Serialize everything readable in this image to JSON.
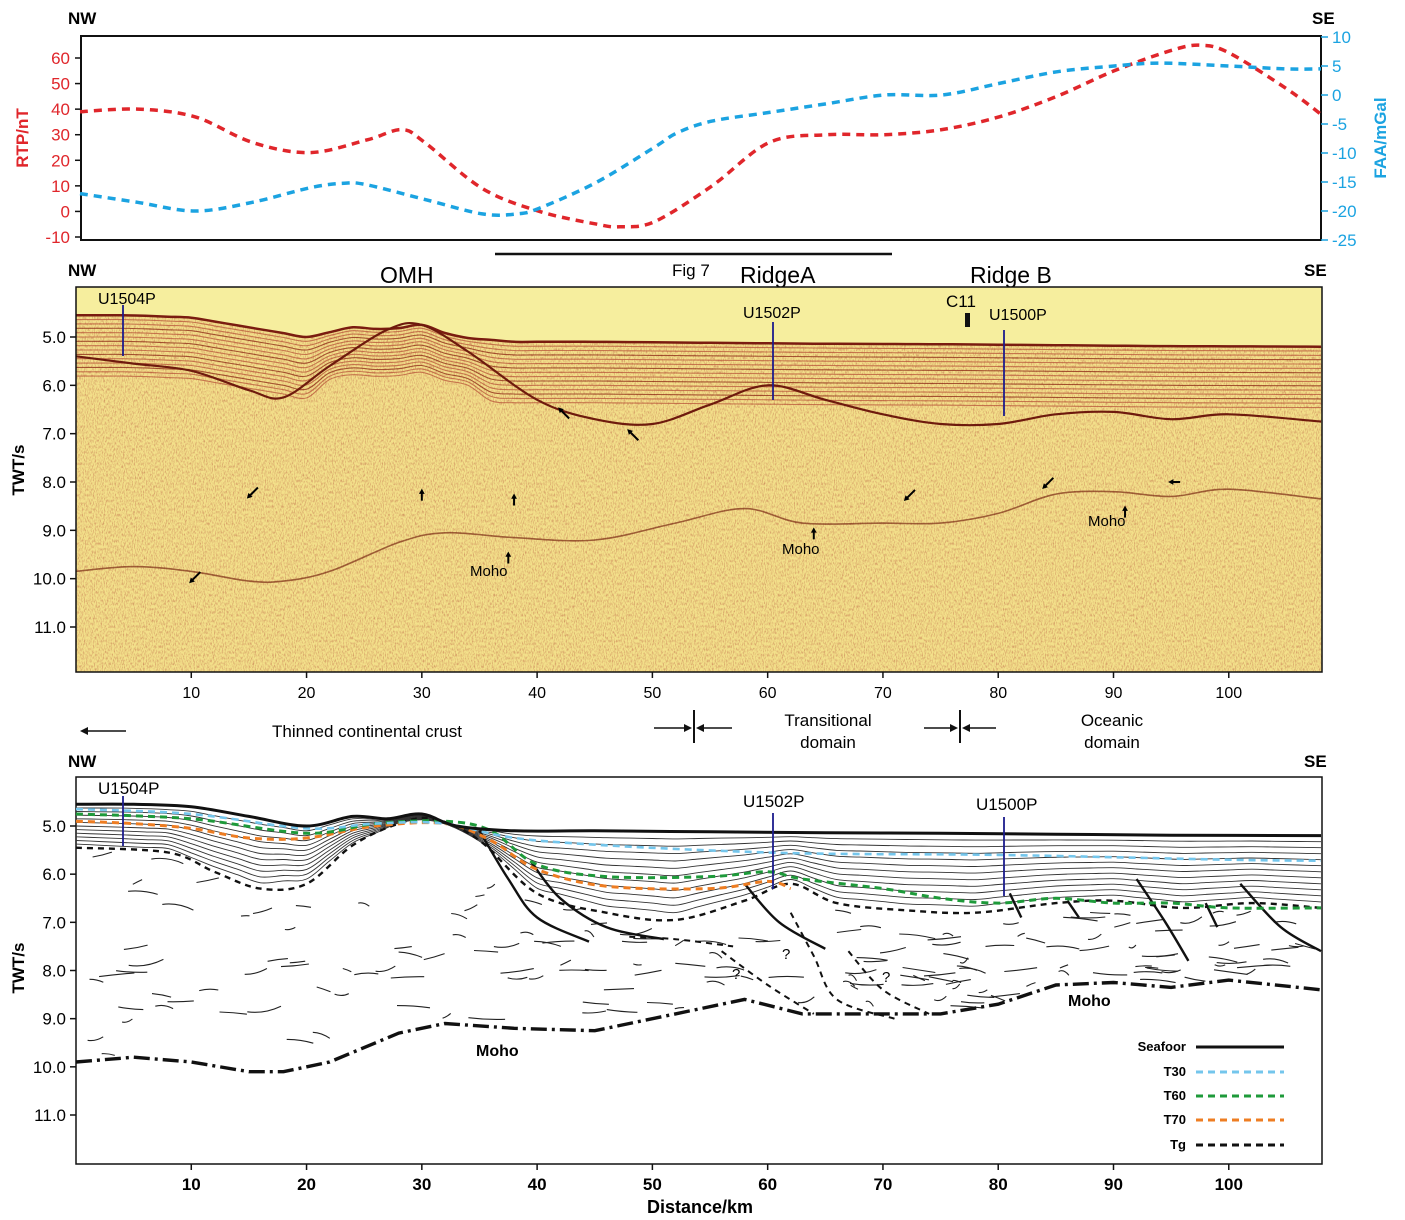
{
  "colors": {
    "rtp": "#e0262b",
    "faa": "#1ba3e1",
    "t30": "#74c6ec",
    "t60": "#1e9a3a",
    "t70": "#ee7d22",
    "ink": "#111111",
    "seismic_bg": "#f3e08a",
    "site_line": "#1c1c8c"
  },
  "panel_a": {
    "left_label": "NW",
    "right_label": "SE",
    "left_axis_label": "RTP/nT",
    "right_axis_label": "FAA/mGal",
    "fig_ref_label": "Fig 7"
  },
  "panel_b": {
    "left_label": "NW",
    "right_label": "SE",
    "y_axis_label": "TWT/s",
    "features": [
      "OMH",
      "RidgeA",
      "Ridge B"
    ],
    "marker_label": "C11",
    "sites": [
      "U1504P",
      "U1502P",
      "U1500P"
    ],
    "moho_labels": [
      "Moho",
      "Moho",
      "Moho"
    ],
    "domain_labels": {
      "continental": "Thinned continental crust",
      "transitional_1": "Transitional",
      "transitional_2": "domain",
      "oceanic_1": "Oceanic",
      "oceanic_2": "domain"
    }
  },
  "panel_c": {
    "left_label": "NW",
    "right_label": "SE",
    "y_axis_label": "TWT/s",
    "x_axis_label": "Distance/km",
    "sites": [
      "U1504P",
      "U1502P",
      "U1500P"
    ],
    "moho_labels": [
      "Moho",
      "Moho"
    ],
    "question_marks": [
      "?",
      "?",
      "?"
    ],
    "legend": [
      {
        "label": "Seafoor",
        "color": "#111111",
        "style": "solid"
      },
      {
        "label": "T30",
        "color": "#74c6ec",
        "style": "dashed"
      },
      {
        "label": "T60",
        "color": "#1e9a3a",
        "style": "dashed"
      },
      {
        "label": "T70",
        "color": "#ee7d22",
        "style": "dashed"
      },
      {
        "label": "Tg",
        "color": "#111111",
        "style": "dashed"
      }
    ]
  },
  "chart_data": [
    {
      "type": "line",
      "xlabel": "Distance/km",
      "xlim": [
        0,
        108
      ],
      "y_left": {
        "label": "RTP/nT",
        "ticks": [
          "-10",
          "0",
          "10",
          "20",
          "30",
          "40",
          "50",
          "60"
        ],
        "lim": [
          -12,
          70
        ]
      },
      "y_right": {
        "label": "FAA/mGal",
        "ticks": [
          "-25",
          "-20",
          "-15",
          "-10",
          "-5",
          "0",
          "5",
          "10"
        ],
        "lim": [
          -25,
          10
        ]
      },
      "series": [
        {
          "axis": "left",
          "color": "#e0262b",
          "x": [
            0,
            5,
            10,
            15,
            20,
            25,
            28,
            30,
            35,
            40,
            45,
            47,
            50,
            55,
            60,
            65,
            70,
            75,
            80,
            85,
            90,
            95,
            97.5,
            100,
            105,
            108
          ],
          "y": [
            39,
            40,
            37,
            27,
            23,
            28,
            32,
            27,
            9,
            0,
            -5,
            -6,
            -4,
            10,
            27,
            30,
            30,
            32,
            37,
            45,
            55,
            63,
            65,
            62,
            48,
            38
          ]
        },
        {
          "axis": "right",
          "color": "#1ba3e1",
          "x": [
            0,
            5,
            10,
            15,
            20,
            23,
            25,
            30,
            35,
            38,
            40,
            45,
            50,
            52,
            55,
            60,
            65,
            70,
            75,
            80,
            85,
            90,
            94,
            100,
            105,
            108
          ],
          "y": [
            -17,
            -18.5,
            -20,
            -18.5,
            -16,
            -15.2,
            -15.5,
            -18,
            -20.5,
            -20.5,
            -19.5,
            -15,
            -9,
            -6.5,
            -4.5,
            -3,
            -1.5,
            0,
            0,
            2,
            4,
            5,
            5.5,
            5,
            4.5,
            4.5
          ]
        }
      ]
    },
    {
      "type": "line",
      "xlim": [
        0,
        108
      ],
      "ylim": [
        12,
        4.5
      ],
      "y_axis_label": "TWT/s",
      "y_ticks": [
        "5.0",
        "6.0",
        "7.0",
        "8.0",
        "9.0",
        "10.0",
        "11.0"
      ],
      "series": [
        {
          "name": "Seafloor",
          "color": "#111111",
          "style": "solid",
          "x": [
            0,
            5,
            10,
            15,
            20,
            24,
            27,
            30,
            33,
            38,
            45,
            55,
            65,
            75,
            85,
            95,
            108
          ],
          "y": [
            4.55,
            4.55,
            4.6,
            4.8,
            5.0,
            4.8,
            4.85,
            4.75,
            5.0,
            5.1,
            5.1,
            5.12,
            5.14,
            5.15,
            5.17,
            5.19,
            5.2
          ]
        },
        {
          "name": "Moho",
          "color": "#111111",
          "style": "dashdot",
          "x": [
            0,
            5,
            10,
            15,
            18,
            22,
            28,
            32,
            38,
            45,
            52,
            58,
            63,
            70,
            75,
            80,
            85,
            90,
            95,
            100,
            108
          ],
          "y": [
            9.9,
            9.8,
            9.9,
            10.1,
            10.1,
            9.9,
            9.3,
            9.1,
            9.2,
            9.25,
            8.9,
            8.6,
            8.9,
            8.9,
            8.9,
            8.7,
            8.3,
            8.25,
            8.35,
            8.2,
            8.4
          ]
        }
      ]
    }
  ],
  "x_ticks": [
    "10",
    "20",
    "30",
    "40",
    "50",
    "60",
    "70",
    "80",
    "90",
    "100"
  ]
}
